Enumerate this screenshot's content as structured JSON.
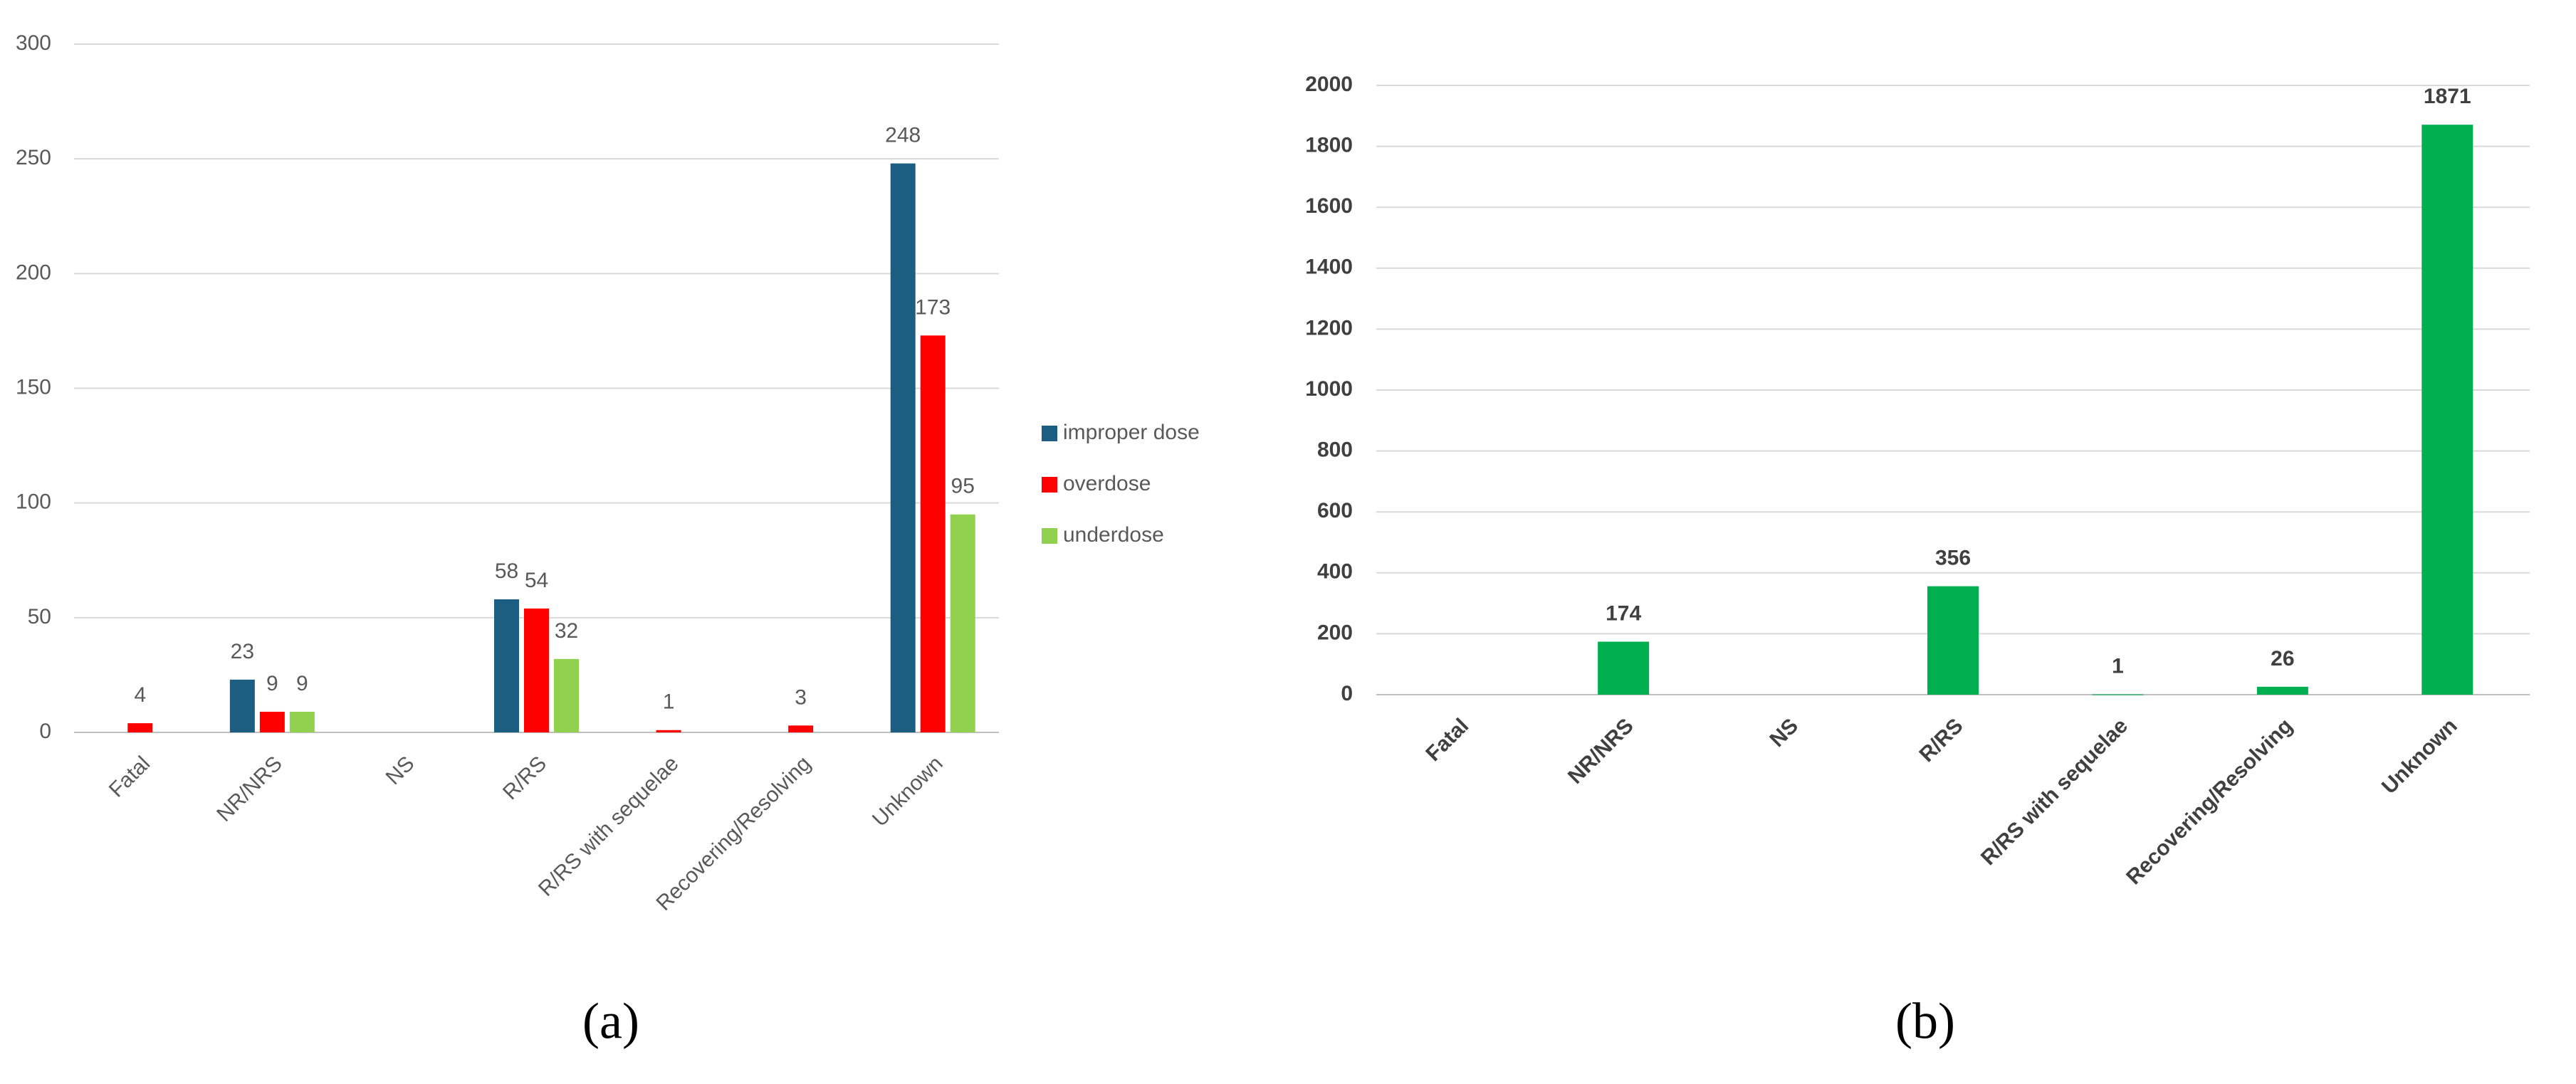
{
  "chart_data": [
    {
      "type": "bar",
      "panel_label": "(a)",
      "categories": [
        "Fatal",
        "NR/NRS",
        "NS",
        "R/RS",
        "R/RS with sequelae",
        "Recovering/Resolving",
        "Unknown"
      ],
      "series": [
        {
          "name": "improper dose",
          "color": "#1b5e82",
          "values": [
            null,
            23,
            null,
            58,
            null,
            null,
            248
          ]
        },
        {
          "name": "overdose",
          "color": "#ff0000",
          "values": [
            4,
            9,
            null,
            54,
            1,
            3,
            173
          ]
        },
        {
          "name": "underdose",
          "color": "#92d050",
          "values": [
            null,
            9,
            null,
            32,
            null,
            null,
            95
          ]
        }
      ],
      "ylim": [
        0,
        300
      ],
      "yticks": [
        0,
        50,
        100,
        150,
        200,
        250,
        300
      ],
      "grid": true,
      "legend": "right"
    },
    {
      "type": "bar",
      "panel_label": "(b)",
      "categories": [
        "Fatal",
        "NR/NRS",
        "NS",
        "R/RS",
        "R/RS with sequelae",
        "Recovering/Resolving",
        "Unknown"
      ],
      "series": [
        {
          "color": "#00b050",
          "values": [
            null,
            174,
            null,
            356,
            1,
            26,
            1871
          ]
        }
      ],
      "ylim": [
        0,
        2000
      ],
      "yticks": [
        0,
        200,
        400,
        600,
        800,
        1000,
        1200,
        1400,
        1600,
        1800,
        2000
      ],
      "grid": true
    }
  ]
}
